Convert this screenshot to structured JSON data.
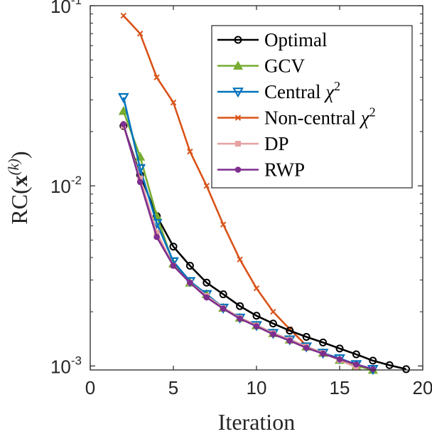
{
  "chart_data": {
    "type": "line",
    "xlabel": "Iteration",
    "ylabel": "RC(x(k))",
    "xlim": [
      0,
      20
    ],
    "ylim": [
      0.00095,
      0.1
    ],
    "yscale": "log",
    "xticks": [
      0,
      5,
      10,
      15,
      20
    ],
    "xtick_labels": [
      "0",
      "5",
      "10",
      "15",
      "20"
    ],
    "yticks": [
      0.001,
      0.01,
      0.1
    ],
    "ytick_labels": [
      {
        "base": "10",
        "exp": "-3"
      },
      {
        "base": "10",
        "exp": "-2"
      },
      {
        "base": "10",
        "exp": "-1"
      }
    ],
    "grid": false,
    "legend_position": "top-right",
    "series": [
      {
        "name": "Optimal",
        "color": "#000000",
        "marker": "circle",
        "x": [
          2,
          3,
          4,
          5,
          6,
          7,
          8,
          9,
          10,
          11,
          12,
          13,
          14,
          15,
          16,
          17,
          18,
          19
        ],
        "y": [
          0.0215,
          0.0115,
          0.0068,
          0.0046,
          0.0036,
          0.0029,
          0.0025,
          0.00215,
          0.0019,
          0.00172,
          0.00157,
          0.00145,
          0.00135,
          0.00125,
          0.00116,
          0.00107,
          0.00101,
          0.00096
        ]
      },
      {
        "name": "GCV",
        "color": "#77AC30",
        "marker": "triangle-up",
        "x": [
          2,
          3,
          4,
          5,
          6,
          7,
          8,
          9,
          10,
          11,
          12,
          13,
          14,
          15,
          16,
          17
        ],
        "y": [
          0.026,
          0.0145,
          0.0068,
          0.0037,
          0.0029,
          0.0025,
          0.0021,
          0.00185,
          0.00168,
          0.00152,
          0.0014,
          0.00128,
          0.00118,
          0.00108,
          0.001,
          0.00095
        ]
      },
      {
        "name": "Central χ²",
        "color": "#0072BD",
        "marker": "triangle-down",
        "x": [
          2,
          3,
          4,
          5,
          6,
          7,
          8,
          9,
          10,
          11,
          12,
          13,
          14,
          15,
          16,
          17
        ],
        "y": [
          0.031,
          0.0125,
          0.0062,
          0.0038,
          0.00295,
          0.0025,
          0.0021,
          0.00185,
          0.00168,
          0.00152,
          0.0014,
          0.00128,
          0.00118,
          0.0011,
          0.00102,
          0.00096
        ]
      },
      {
        "name": "Non-central χ²",
        "color": "#D95319",
        "marker": "x",
        "x": [
          2,
          3,
          4,
          5,
          6,
          7,
          8,
          9,
          10,
          11,
          12,
          13
        ],
        "y": [
          0.088,
          0.07,
          0.04,
          0.029,
          0.0155,
          0.01,
          0.0061,
          0.0039,
          0.0027,
          0.002,
          0.0016,
          0.0013
        ]
      },
      {
        "name": "DP",
        "color": "#E6A0A0",
        "marker": "square",
        "x": [
          2,
          3,
          4,
          5,
          6,
          7,
          8,
          9,
          10,
          11,
          12,
          13,
          14,
          15,
          16
        ],
        "y": [
          0.0215,
          0.011,
          0.0055,
          0.0036,
          0.0029,
          0.00245,
          0.0021,
          0.00185,
          0.00168,
          0.00152,
          0.0014,
          0.00128,
          0.00118,
          0.00108,
          0.00098
        ]
      },
      {
        "name": "RWP",
        "color": "#7E2F8E",
        "marker": "circle-filled",
        "x": [
          2,
          3,
          4,
          5,
          6,
          7,
          8,
          9,
          10,
          11,
          12,
          13,
          14,
          15,
          16,
          17
        ],
        "y": [
          0.022,
          0.0105,
          0.0052,
          0.0036,
          0.0029,
          0.0024,
          0.00208,
          0.00183,
          0.00166,
          0.0015,
          0.00138,
          0.00126,
          0.00117,
          0.00109,
          0.00102,
          0.00096
        ]
      }
    ]
  }
}
